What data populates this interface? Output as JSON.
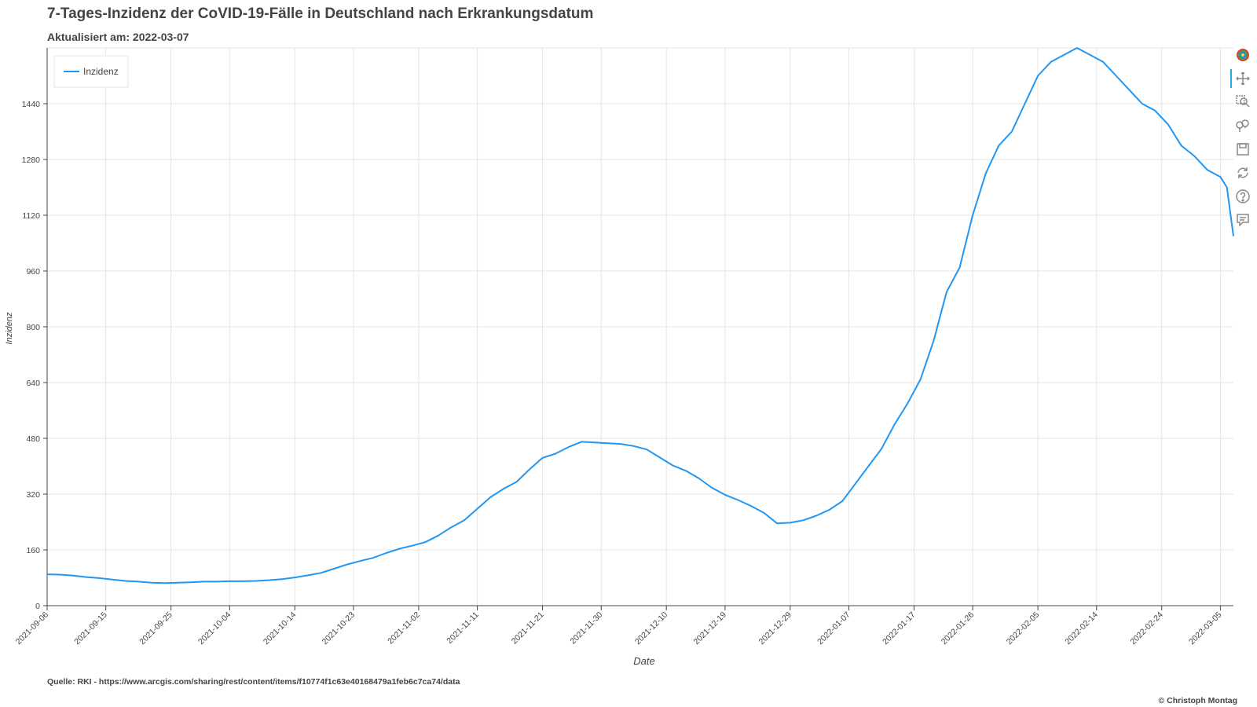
{
  "header": {
    "title": "7-Tages-Inzidenz der CoVID-19-Fälle in Deutschland nach Erkrankungsdatum",
    "subtitle": "Aktualisiert am: 2022-03-07"
  },
  "footer": {
    "source": "Quelle: RKI - https://www.arcgis.com/sharing/rest/content/items/f10774f1c63e40168479a1feb6c7ca74/data",
    "copyright": "© Christoph Montag"
  },
  "toolbar": {
    "tools": [
      {
        "name": "bokeh-logo-icon",
        "label": "Bokeh"
      },
      {
        "name": "pan-icon",
        "label": "Pan"
      },
      {
        "name": "box-zoom-icon",
        "label": "Box Zoom"
      },
      {
        "name": "wheel-zoom-icon",
        "label": "Wheel Zoom"
      },
      {
        "name": "save-icon",
        "label": "Save"
      },
      {
        "name": "reset-icon",
        "label": "Reset"
      },
      {
        "name": "help-icon",
        "label": "Help"
      },
      {
        "name": "hover-icon",
        "label": "Hover"
      }
    ]
  },
  "colors": {
    "line": "#2196f3",
    "grid": "#e5e5e5",
    "axis": "#444444"
  },
  "chart_data": {
    "type": "line",
    "title": "7-Tages-Inzidenz der CoVID-19-Fälle in Deutschland nach Erkrankungsdatum",
    "xlabel": "Date",
    "ylabel": "Inzidenz",
    "x_start": "2021-09-06",
    "x_end": "2022-03-07",
    "ylim": [
      0,
      1600
    ],
    "yticks": [
      0,
      160,
      320,
      480,
      640,
      800,
      960,
      1120,
      1280,
      1440
    ],
    "xticks": [
      "2021-09-06",
      "2021-09-15",
      "2021-09-25",
      "2021-10-04",
      "2021-10-14",
      "2021-10-23",
      "2021-11-02",
      "2021-11-11",
      "2021-11-21",
      "2021-11-30",
      "2021-12-10",
      "2021-12-19",
      "2021-12-29",
      "2022-01-07",
      "2022-01-17",
      "2022-01-26",
      "2022-02-05",
      "2022-02-14",
      "2022-02-24",
      "2022-03-05"
    ],
    "grid": true,
    "legend": {
      "position": "top-left",
      "entries": [
        "Inzidenz"
      ]
    },
    "series": [
      {
        "name": "Inzidenz",
        "points": [
          [
            "2021-09-06",
            90
          ],
          [
            "2021-09-08",
            89
          ],
          [
            "2021-09-10",
            86
          ],
          [
            "2021-09-12",
            82
          ],
          [
            "2021-09-14",
            79
          ],
          [
            "2021-09-16",
            75
          ],
          [
            "2021-09-18",
            71
          ],
          [
            "2021-09-20",
            69
          ],
          [
            "2021-09-22",
            66
          ],
          [
            "2021-09-24",
            65
          ],
          [
            "2021-09-26",
            66
          ],
          [
            "2021-09-28",
            67
          ],
          [
            "2021-09-30",
            69
          ],
          [
            "2021-10-02",
            69
          ],
          [
            "2021-10-04",
            70
          ],
          [
            "2021-10-06",
            70
          ],
          [
            "2021-10-08",
            71
          ],
          [
            "2021-10-10",
            73
          ],
          [
            "2021-10-12",
            76
          ],
          [
            "2021-10-14",
            81
          ],
          [
            "2021-10-16",
            87
          ],
          [
            "2021-10-18",
            94
          ],
          [
            "2021-10-20",
            106
          ],
          [
            "2021-10-22",
            118
          ],
          [
            "2021-10-24",
            128
          ],
          [
            "2021-10-26",
            137
          ],
          [
            "2021-10-28",
            151
          ],
          [
            "2021-10-30",
            163
          ],
          [
            "2021-11-01",
            172
          ],
          [
            "2021-11-03",
            182
          ],
          [
            "2021-11-05",
            201
          ],
          [
            "2021-11-07",
            225
          ],
          [
            "2021-11-09",
            245
          ],
          [
            "2021-11-11",
            278
          ],
          [
            "2021-11-13",
            311
          ],
          [
            "2021-11-15",
            335
          ],
          [
            "2021-11-17",
            355
          ],
          [
            "2021-11-19",
            391
          ],
          [
            "2021-11-21",
            424
          ],
          [
            "2021-11-23",
            436
          ],
          [
            "2021-11-25",
            455
          ],
          [
            "2021-11-27",
            470
          ],
          [
            "2021-11-29",
            468
          ],
          [
            "2021-12-01",
            466
          ],
          [
            "2021-12-03",
            464
          ],
          [
            "2021-12-05",
            458
          ],
          [
            "2021-12-07",
            448
          ],
          [
            "2021-12-09",
            425
          ],
          [
            "2021-12-11",
            402
          ],
          [
            "2021-12-13",
            387
          ],
          [
            "2021-12-15",
            365
          ],
          [
            "2021-12-17",
            338
          ],
          [
            "2021-12-19",
            318
          ],
          [
            "2021-12-21",
            303
          ],
          [
            "2021-12-23",
            286
          ],
          [
            "2021-12-25",
            266
          ],
          [
            "2021-12-27",
            236
          ],
          [
            "2021-12-29",
            238
          ],
          [
            "2021-12-31",
            245
          ],
          [
            "2022-01-02",
            258
          ],
          [
            "2022-01-04",
            275
          ],
          [
            "2022-01-06",
            300
          ],
          [
            "2022-01-08",
            350
          ],
          [
            "2022-01-10",
            400
          ],
          [
            "2022-01-12",
            450
          ],
          [
            "2022-01-14",
            520
          ],
          [
            "2022-01-16",
            580
          ],
          [
            "2022-01-18",
            650
          ],
          [
            "2022-01-20",
            760
          ],
          [
            "2022-01-22",
            900
          ],
          [
            "2022-01-24",
            970
          ],
          [
            "2022-01-26",
            1120
          ],
          [
            "2022-01-28",
            1240
          ],
          [
            "2022-01-30",
            1320
          ],
          [
            "2022-02-01",
            1360
          ],
          [
            "2022-02-03",
            1440
          ],
          [
            "2022-02-05",
            1520
          ],
          [
            "2022-02-07",
            1560
          ],
          [
            "2022-02-09",
            1580
          ],
          [
            "2022-02-11",
            1600
          ],
          [
            "2022-02-13",
            1580
          ],
          [
            "2022-02-15",
            1560
          ],
          [
            "2022-02-17",
            1520
          ],
          [
            "2022-02-19",
            1480
          ],
          [
            "2022-02-21",
            1440
          ],
          [
            "2022-02-23",
            1420
          ],
          [
            "2022-02-25",
            1380
          ],
          [
            "2022-02-27",
            1320
          ],
          [
            "2022-03-01",
            1290
          ],
          [
            "2022-03-03",
            1250
          ],
          [
            "2022-03-05",
            1230
          ],
          [
            "2022-03-06",
            1200
          ],
          [
            "2022-03-07",
            1060
          ]
        ]
      }
    ]
  }
}
